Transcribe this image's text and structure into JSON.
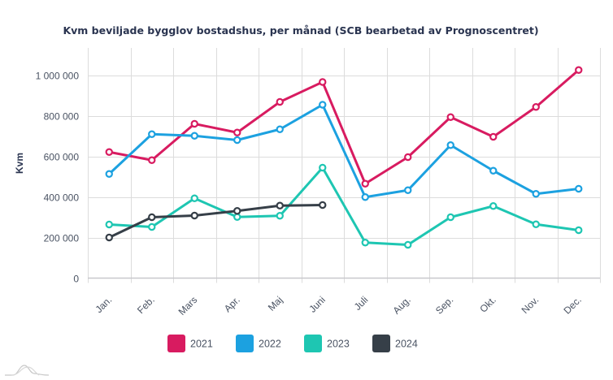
{
  "chart_data": {
    "type": "line",
    "title": "Kvm beviljade bygglov bostadshus, per månad (SCB bearbetad av Prognoscentret)",
    "xlabel": "",
    "ylabel": "Kvm",
    "categories": [
      "Jan.",
      "Feb.",
      "Mars",
      "Apr.",
      "Maj",
      "Juni",
      "Juli",
      "Aug.",
      "Sep.",
      "Okt.",
      "Nov.",
      "Dec."
    ],
    "ylim": [
      0,
      1100000
    ],
    "yticks": [
      0,
      200000,
      400000,
      600000,
      800000,
      1000000
    ],
    "ytick_labels": [
      "0",
      "200 000",
      "400 000",
      "600 000",
      "800 000",
      "1 000 000"
    ],
    "grid": true,
    "legend_position": "bottom",
    "series": [
      {
        "name": "2021",
        "color": "#d81b60",
        "values": [
          621000,
          581000,
          760000,
          717000,
          868000,
          966000,
          465000,
          596000,
          793000,
          696000,
          843000,
          1025000
        ]
      },
      {
        "name": "2022",
        "color": "#1ca1e0",
        "values": [
          513000,
          709000,
          701000,
          680000,
          733000,
          854000,
          399000,
          433000,
          655000,
          529000,
          415000,
          440000
        ]
      },
      {
        "name": "2023",
        "color": "#1ec6b2",
        "values": [
          264000,
          252000,
          393000,
          301000,
          307000,
          544000,
          175000,
          164000,
          300000,
          355000,
          265000,
          236000
        ]
      },
      {
        "name": "2024",
        "color": "#363f48",
        "values": [
          200000,
          300000,
          308000,
          331000,
          357000,
          360000,
          null,
          null,
          null,
          null,
          null,
          null
        ]
      }
    ]
  },
  "watermark": {
    "icon": "mountain-logo-icon"
  }
}
